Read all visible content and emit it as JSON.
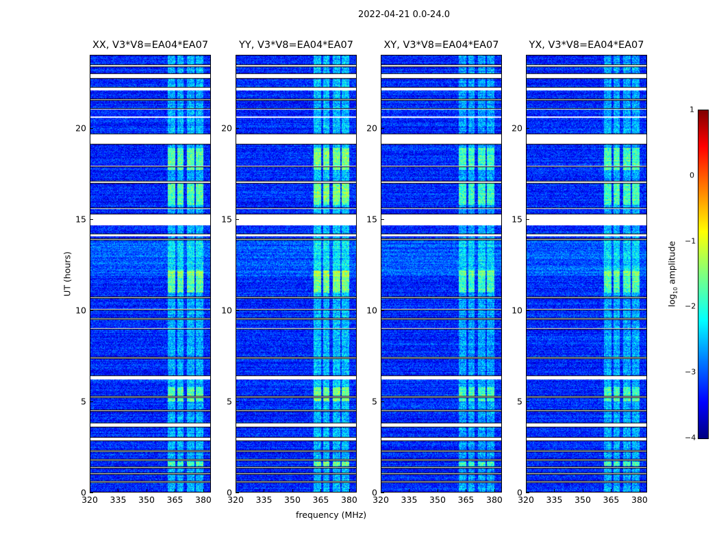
{
  "chart_data": {
    "type": "heatmap",
    "title": "2022-04-21 0.0-24.0",
    "xlabel": "frequency (MHz)",
    "ylabel": "UT (hours)",
    "xlim": [
      320,
      384
    ],
    "ylim": [
      0,
      24
    ],
    "xticks": [
      "320",
      "335",
      "350",
      "365",
      "380"
    ],
    "yticks": [
      "0",
      "5",
      "10",
      "15",
      "20"
    ],
    "panels": [
      {
        "title": "XX, V3*V8=EA04*EA07",
        "rfi_gain": 1.0
      },
      {
        "title": "YY, V3*V8=EA04*EA07",
        "rfi_gain": 1.1
      },
      {
        "title": "XY, V3*V8=EA04*EA07",
        "rfi_gain": 0.9
      },
      {
        "title": "YX, V3*V8=EA04*EA07",
        "rfi_gain": 0.95
      }
    ],
    "colorbar": {
      "label_prefix": "log",
      "label_sub": "10",
      "label_suffix": " amplitude",
      "ticks": [
        "1",
        "0",
        "−1",
        "−2",
        "−3",
        "−4"
      ],
      "range": [
        -4,
        1
      ],
      "colormap": "jet"
    },
    "background_log_amp": -3.2,
    "rfi_channels_mhz": [
      [
        361,
        365
      ],
      [
        366,
        369.5
      ],
      [
        371,
        375
      ],
      [
        376,
        380
      ]
    ],
    "flagged_hours": [
      [
        23.35,
        23.5
      ],
      [
        22.7,
        23.0
      ],
      [
        22.05,
        22.25
      ],
      [
        21.5,
        21.6
      ],
      [
        21.0,
        21.1
      ],
      [
        20.55,
        20.65
      ],
      [
        19.1,
        19.7
      ],
      [
        17.85,
        17.95
      ],
      [
        16.95,
        17.1
      ],
      [
        15.55,
        15.65
      ],
      [
        14.65,
        15.3
      ],
      [
        14.05,
        14.2
      ],
      [
        13.85,
        13.95
      ],
      [
        10.65,
        10.75
      ],
      [
        10.0,
        10.1
      ],
      [
        9.5,
        9.6
      ],
      [
        8.95,
        9.05
      ],
      [
        7.35,
        7.45
      ],
      [
        6.2,
        6.45
      ],
      [
        5.2,
        5.3
      ],
      [
        4.45,
        4.55
      ],
      [
        3.6,
        3.85
      ],
      [
        2.85,
        3.05
      ],
      [
        2.25,
        2.35
      ],
      [
        1.75,
        1.85
      ],
      [
        1.35,
        1.45
      ],
      [
        1.0,
        1.1
      ],
      [
        0.55,
        0.65
      ]
    ],
    "bright_hours": [
      [
        11.0,
        12.2
      ],
      [
        15.8,
        17.0
      ],
      [
        17.7,
        18.9
      ],
      [
        1.5,
        1.7
      ],
      [
        5.0,
        5.8
      ]
    ]
  }
}
